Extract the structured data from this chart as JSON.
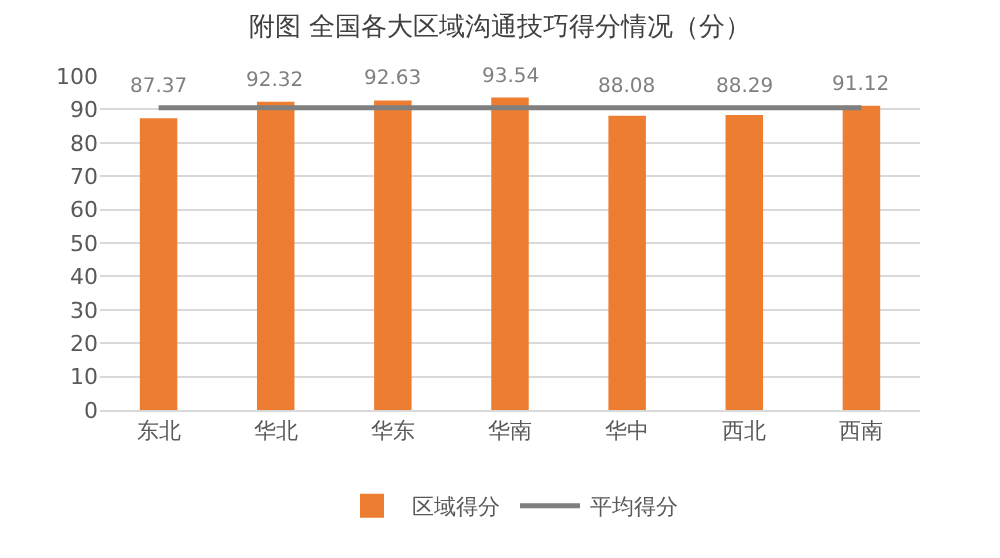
{
  "chart_data": {
    "type": "bar",
    "title": "附图 全国各大区域沟通技巧得分情况（分）",
    "categories": [
      "东北",
      "华北",
      "华东",
      "华南",
      "华中",
      "西北",
      "西南"
    ],
    "series": [
      {
        "name": "区域得分",
        "color": "#ed7d31",
        "values": [
          87.37,
          92.32,
          92.63,
          93.54,
          88.08,
          88.29,
          91.12
        ],
        "value_labels": [
          "87.37",
          "92.32",
          "92.63",
          "93.54",
          "88.08",
          "88.29",
          "91.12"
        ]
      },
      {
        "name": "平均得分",
        "type": "line",
        "color": "#7f7f7f",
        "values": [
          90.5,
          90.5,
          90.5,
          90.5,
          90.5,
          90.5,
          90.5
        ]
      }
    ],
    "ylim": [
      0,
      100
    ],
    "yticks": [
      0,
      10,
      20,
      30,
      40,
      50,
      60,
      70,
      80,
      90,
      100
    ],
    "grid": "y",
    "legend": "bottom",
    "marker": "none",
    "line_style": "solid"
  }
}
